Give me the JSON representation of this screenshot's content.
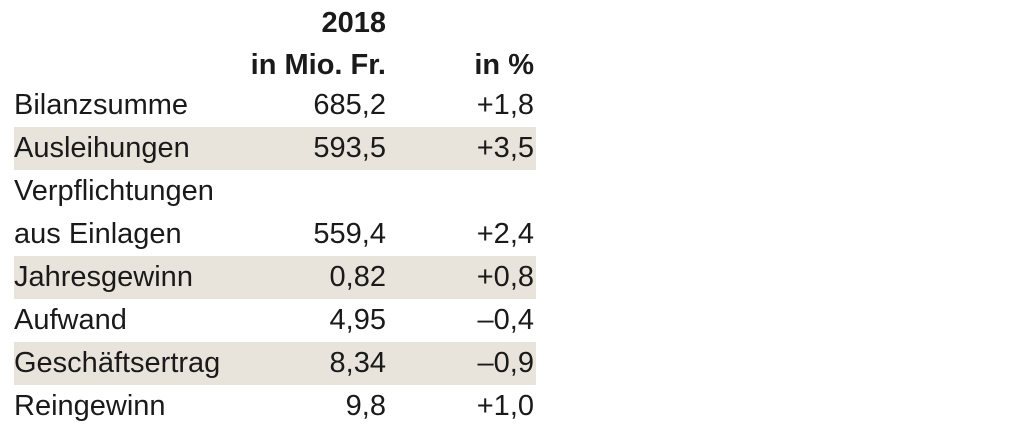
{
  "header": {
    "year": "2018",
    "col_value": "in Mio. Fr.",
    "col_percent": "in %"
  },
  "rows": [
    {
      "label": "Bilanzsumme",
      "value": "685,2",
      "percent": "+1,8"
    },
    {
      "label": "Ausleihungen",
      "value": "593,5",
      "percent": "+3,5"
    },
    {
      "label_line1": "Verpflichtungen",
      "label_line2": "aus Einlagen",
      "value": "559,4",
      "percent": "+2,4"
    },
    {
      "label": "Jahresgewinn",
      "value": "0,82",
      "percent": "+0,8"
    },
    {
      "label": "Aufwand",
      "value": "4,95",
      "percent": "–0,4"
    },
    {
      "label": "Geschäftsertrag",
      "value": "8,34",
      "percent": "–0,9"
    },
    {
      "label": "Reingewinn",
      "value": "9,8",
      "percent": "+1,0"
    }
  ],
  "colors": {
    "shade": "#e8e3db",
    "text": "#1a1a1a"
  }
}
